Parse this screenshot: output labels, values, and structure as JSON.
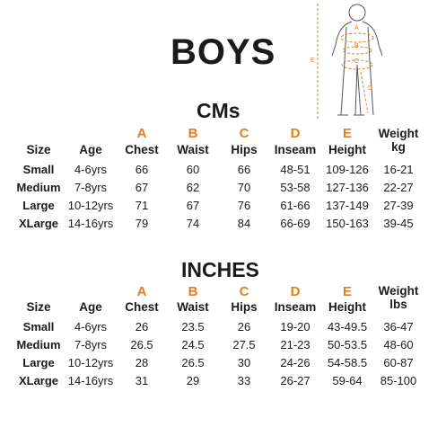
{
  "title": "BOYS",
  "letters": [
    "A",
    "B",
    "C",
    "D",
    "E"
  ],
  "columns": [
    {
      "label": "Size",
      "letter": ""
    },
    {
      "label": "Age",
      "letter": ""
    },
    {
      "label": "Chest",
      "letter": "A"
    },
    {
      "label": "Waist",
      "letter": "B"
    },
    {
      "label": "Hips",
      "letter": "C"
    },
    {
      "label": "Inseam",
      "letter": "D"
    },
    {
      "label": "Height",
      "letter": "E"
    }
  ],
  "sections": [
    {
      "title": "CMs",
      "weight_label": [
        "Weight",
        "kg"
      ],
      "rows": [
        [
          "Small",
          "4-6yrs",
          "66",
          "60",
          "66",
          "48-51",
          "109-126",
          "16-21"
        ],
        [
          "Medium",
          "7-8yrs",
          "67",
          "62",
          "70",
          "53-58",
          "127-136",
          "22-27"
        ],
        [
          "Large",
          "10-12yrs",
          "71",
          "67",
          "76",
          "61-66",
          "137-149",
          "27-39"
        ],
        [
          "XLarge",
          "14-16yrs",
          "79",
          "74",
          "84",
          "66-69",
          "150-163",
          "39-45"
        ]
      ]
    },
    {
      "title": "INCHES",
      "weight_label": [
        "Weight",
        "lbs"
      ],
      "rows": [
        [
          "Small",
          "4-6yrs",
          "26",
          "23.5",
          "26",
          "19-20",
          "43-49.5",
          "36-47"
        ],
        [
          "Medium",
          "7-8yrs",
          "26.5",
          "24.5",
          "27.5",
          "21-23",
          "50-53.5",
          "48-60"
        ],
        [
          "Large",
          "10-12yrs",
          "28",
          "26.5",
          "30",
          "24-26",
          "54-58.5",
          "60-87"
        ],
        [
          "XLarge",
          "14-16yrs",
          "31",
          "29",
          "33",
          "26-27",
          "59-64",
          "85-100"
        ]
      ]
    }
  ],
  "accent_color": "#e07f20"
}
